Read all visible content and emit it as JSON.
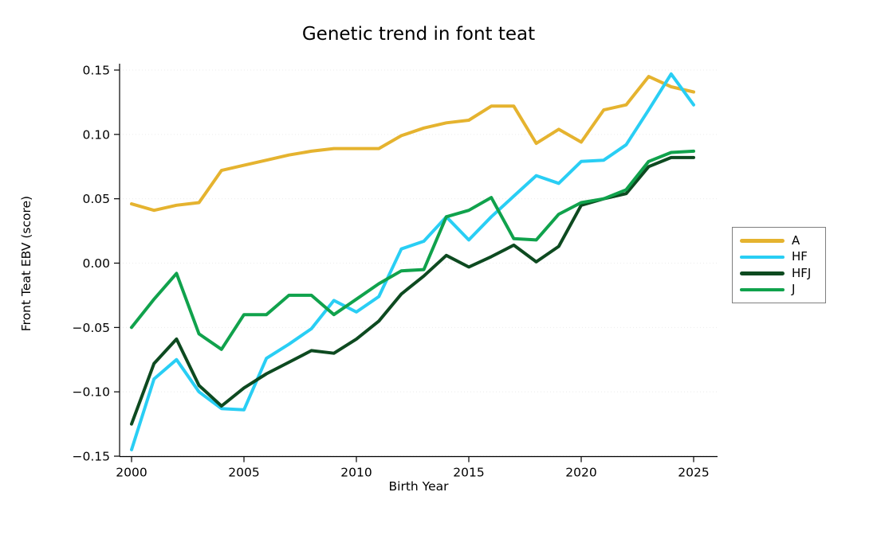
{
  "title": "Genetic trend in font teat",
  "xlabel": "Birth Year",
  "ylabel": "Front Teat EBV (score)",
  "chart_data": {
    "type": "line",
    "x": [
      2000,
      2001,
      2002,
      2003,
      2004,
      2005,
      2006,
      2007,
      2008,
      2009,
      2010,
      2011,
      2012,
      2013,
      2014,
      2015,
      2016,
      2017,
      2018,
      2019,
      2020,
      2021,
      2022,
      2023,
      2024,
      2025
    ],
    "series": [
      {
        "name": "A",
        "color": "#e5b32f",
        "values": [
          0.046,
          0.041,
          0.045,
          0.047,
          0.072,
          0.076,
          0.08,
          0.084,
          0.087,
          0.089,
          0.089,
          0.089,
          0.099,
          0.105,
          0.109,
          0.111,
          0.122,
          0.122,
          0.093,
          0.104,
          0.094,
          0.119,
          0.123,
          0.145,
          0.137,
          0.133
        ]
      },
      {
        "name": "HF",
        "color": "#29cef4",
        "values": [
          -0.145,
          -0.09,
          -0.075,
          -0.1,
          -0.113,
          -0.114,
          -0.074,
          -0.063,
          -0.051,
          -0.029,
          -0.038,
          -0.026,
          0.011,
          0.017,
          0.036,
          0.018,
          0.036,
          0.052,
          0.068,
          0.062,
          0.079,
          0.08,
          0.092,
          0.119,
          0.147,
          0.123
        ]
      },
      {
        "name": "HFJ",
        "color": "#0d4a20",
        "values": [
          -0.125,
          -0.078,
          -0.059,
          -0.095,
          -0.111,
          -0.097,
          -0.086,
          -0.077,
          -0.068,
          -0.07,
          -0.059,
          -0.045,
          -0.024,
          -0.01,
          0.006,
          -0.003,
          0.005,
          0.014,
          0.001,
          0.013,
          0.045,
          0.05,
          0.054,
          0.075,
          0.082,
          0.082
        ]
      },
      {
        "name": "J",
        "color": "#10a24c",
        "values": [
          -0.05,
          -0.028,
          -0.008,
          -0.055,
          -0.067,
          -0.04,
          -0.04,
          -0.025,
          -0.025,
          -0.04,
          -0.028,
          -0.016,
          -0.006,
          -0.005,
          0.036,
          0.041,
          0.051,
          0.019,
          0.018,
          0.038,
          0.047,
          0.05,
          0.057,
          0.079,
          0.086,
          0.087
        ]
      }
    ],
    "xlim": [
      1999.5,
      2026.1
    ],
    "ylim": [
      -0.15,
      0.15
    ],
    "x_ticks": [
      2000,
      2005,
      2010,
      2015,
      2020,
      2025
    ],
    "y_tick_labels": [
      "0.15",
      "0.10",
      "0.05",
      "0.00",
      "−0.05",
      "−0.10",
      "−0.15"
    ],
    "y_tick_values": [
      0.15,
      0.1,
      0.05,
      0.0,
      -0.05,
      -0.1,
      -0.15
    ],
    "grid": "dotted-horizontal",
    "grid_color": "#ebebeb",
    "axis_color": "#000000",
    "legend_position": "right-outside",
    "line_width": 4
  }
}
